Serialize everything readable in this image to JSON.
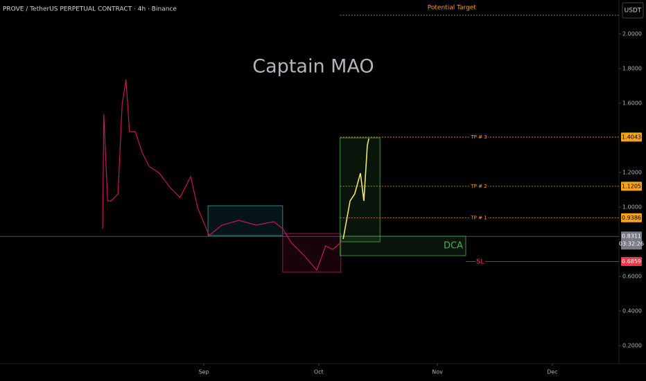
{
  "header": {
    "symbol": "PROVE / TetherUS PERPETUAL CONTRACT · 4h · Binance",
    "currency": "USDT"
  },
  "chart_data": {
    "type": "line",
    "title": "Captain MAO",
    "xlim": [
      -53.2,
      108.4
    ],
    "xticks": [
      {
        "value": 0,
        "label": "Sep"
      },
      {
        "value": 30,
        "label": "Oct"
      },
      {
        "value": 61,
        "label": "Nov"
      },
      {
        "value": 91,
        "label": "Dec"
      }
    ],
    "ylim": [
      0.096,
      2.196
    ],
    "yticks": [
      {
        "value": 0.2,
        "label": "0.2000"
      },
      {
        "value": 0.4,
        "label": "0.4000"
      },
      {
        "value": 0.6,
        "label": "0.6000"
      },
      {
        "value": 1.0,
        "label": "1.0000"
      },
      {
        "value": 1.2,
        "label": "1.2000"
      },
      {
        "value": 1.6,
        "label": "1.6000"
      },
      {
        "value": 1.8,
        "label": "1.8000"
      },
      {
        "value": 2.0,
        "label": "2.0000"
      }
    ],
    "series": [
      {
        "color": "#c2185b",
        "x": [
          -26.4,
          -26.1,
          -25.1,
          -24.2,
          -22.4,
          -21.3,
          -20.3,
          -19.4,
          -17.9,
          -16.1,
          -14.3,
          -11.6,
          -8.9,
          -6.2,
          -3.4,
          -1.6,
          1.4,
          4.7,
          9.2,
          13.7,
          18.3,
          20.6,
          22.8,
          26.4,
          29.5,
          31.8,
          33.7,
          35.8
        ],
        "values": [
          0.876,
          1.536,
          1.036,
          1.036,
          1.076,
          1.596,
          1.736,
          1.436,
          1.436,
          1.316,
          1.236,
          1.196,
          1.116,
          1.056,
          1.176,
          0.996,
          0.836,
          0.896,
          0.924,
          0.896,
          0.916,
          0.876,
          0.796,
          0.716,
          0.636,
          0.776,
          0.756,
          0.796
        ]
      },
      {
        "color": "#f5e663",
        "x": [
          36.4,
          38.2,
          39.4,
          40.9,
          41.8,
          42.7,
          43.1
        ],
        "values": [
          0.816,
          1.036,
          1.076,
          1.196,
          1.036,
          1.356,
          1.396
        ]
      }
    ],
    "zones": [
      {
        "x": [
          1.1,
          20.6
        ],
        "y": [
          0.836,
          1.008
        ],
        "color": "#26a6b5"
      },
      {
        "x": [
          20.6,
          35.8
        ],
        "y": [
          0.624,
          0.848
        ],
        "color": "#c2185b"
      },
      {
        "x": [
          35.6,
          46.0
        ],
        "y": [
          0.8,
          1.4
        ],
        "color": "#4caf50"
      },
      {
        "x": [
          35.6,
          68.4
        ],
        "y": [
          0.72,
          0.832
        ],
        "color": "#4caf50",
        "label": "DCA"
      }
    ],
    "levels": [
      {
        "label": "TP # 3",
        "value": 1.4043,
        "color": "#f7a21b",
        "dashed": true,
        "x": [
          35.6,
          108.4
        ]
      },
      {
        "label": "TP # 2",
        "value": 1.1205,
        "color": "#f7a21b",
        "dashed": true,
        "x": [
          35.6,
          108.4
        ]
      },
      {
        "label": "TP # 1",
        "value": 0.9386,
        "color": "#f7a21b",
        "dashed": true,
        "x": [
          35.6,
          108.4
        ]
      },
      {
        "label": "SL",
        "value": 0.6859,
        "color": "#f23645",
        "dashed": false,
        "x": [
          68.4,
          108.4
        ]
      },
      {
        "label": "Potential Target",
        "value": 2.108,
        "color": "#f7a21b",
        "dashed": true,
        "x": [
          35.6,
          108.4
        ]
      }
    ],
    "last_price": {
      "value": 0.8311,
      "countdown": "03:32:26",
      "color": "#787b86"
    }
  }
}
